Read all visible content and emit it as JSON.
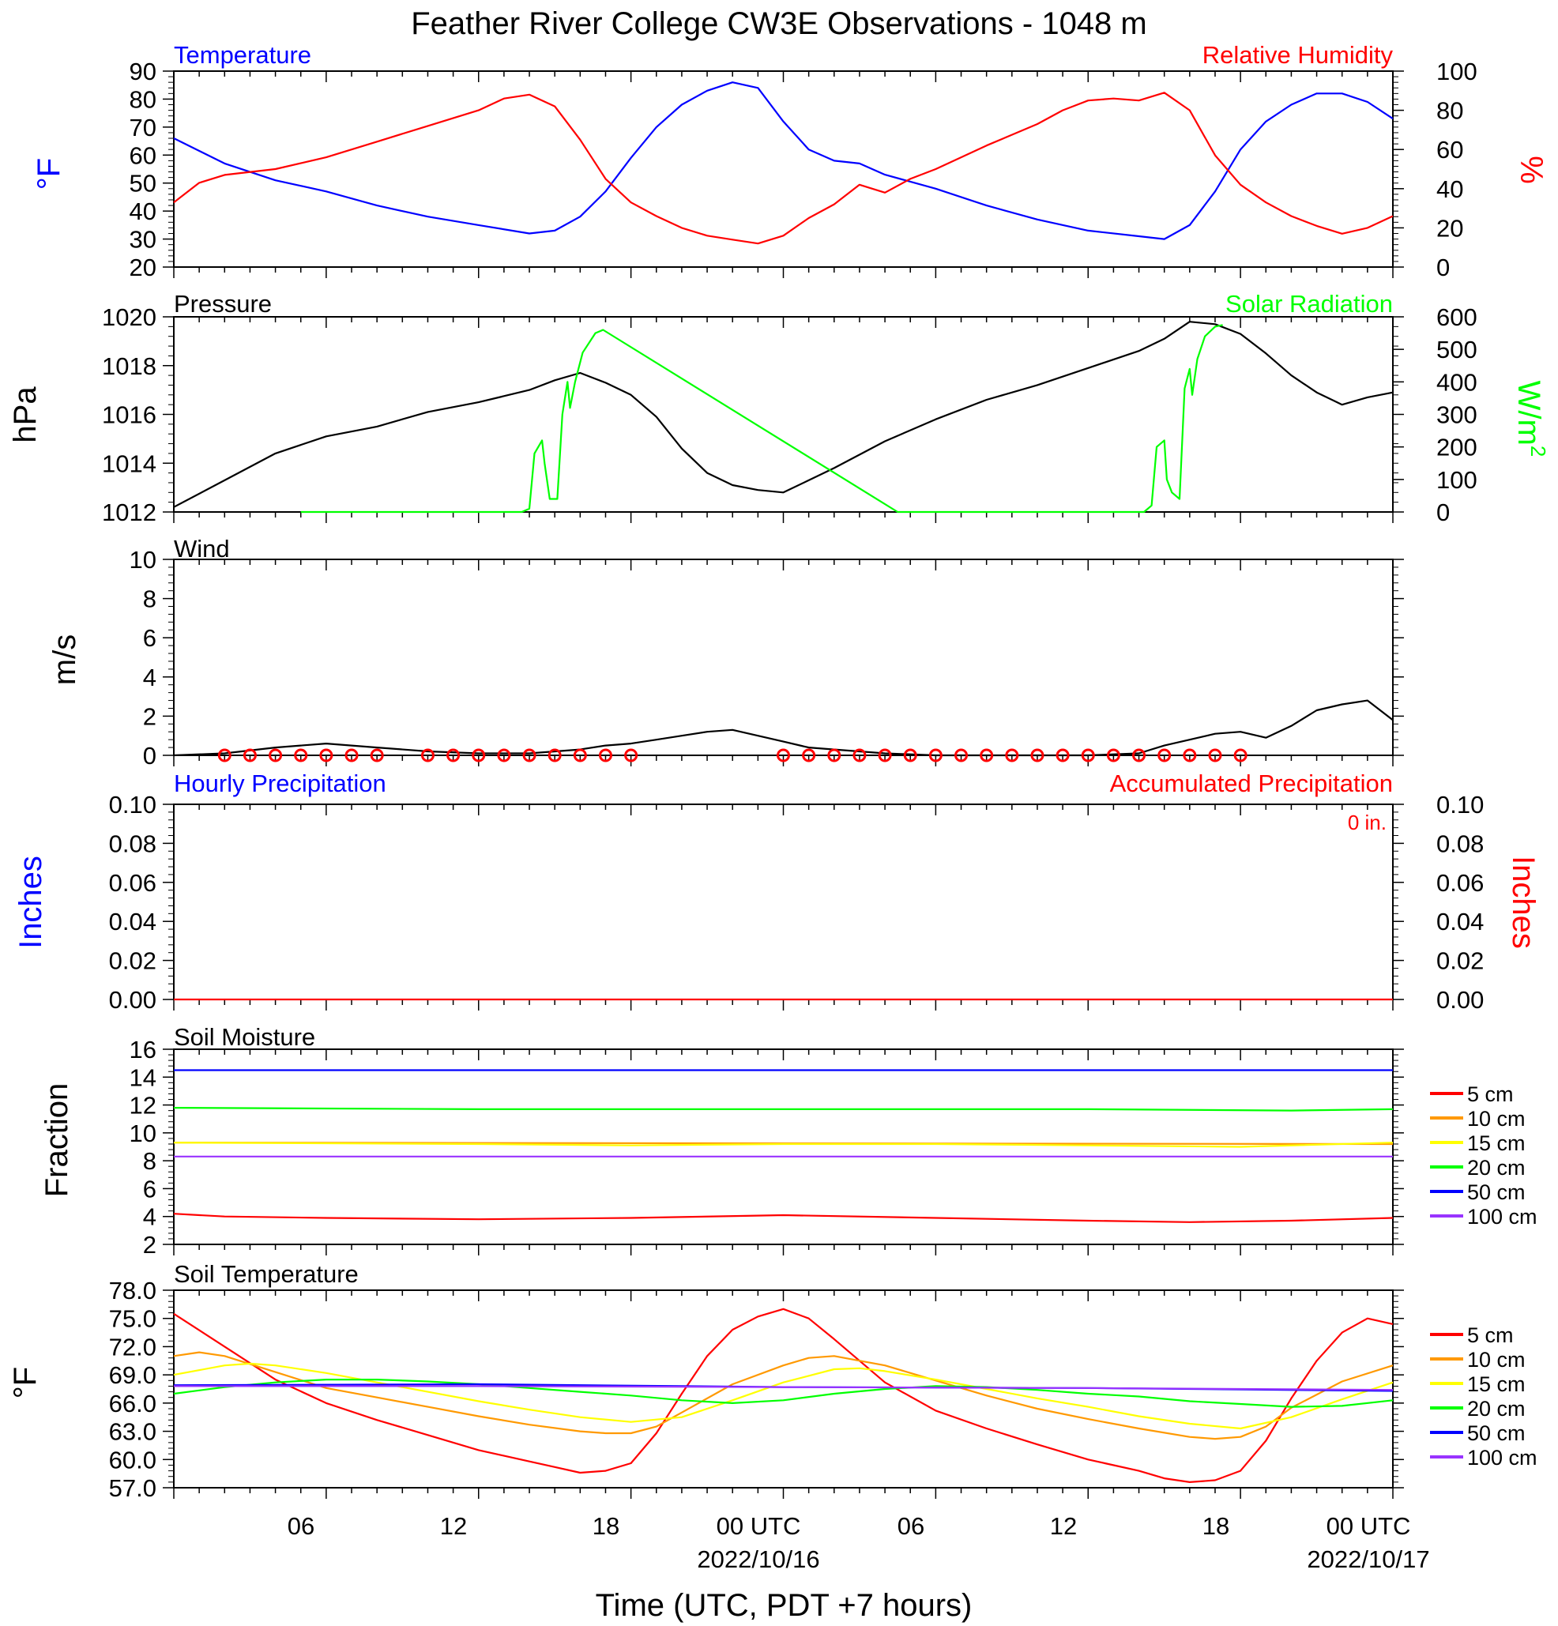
{
  "title": "Feather River College CW3E Observations - 1048 m",
  "x_axis": {
    "title": "Time (UTC, PDT +7 hours)",
    "tick_labels": [
      "06",
      "12",
      "18",
      "00 UTC",
      "06",
      "12",
      "18",
      "00 UTC"
    ],
    "date_labels": [
      "2022/10/16",
      "2022/10/17"
    ]
  },
  "colors": {
    "blue": "#0000ff",
    "red": "#ff0000",
    "green": "#00ff00",
    "orange": "#ff9900",
    "yellow": "#ffff00",
    "purple": "#9933ff",
    "black": "#000000"
  },
  "chart_data": [
    {
      "type": "line",
      "panel": "temperature_rh",
      "title_left": "Temperature",
      "title_right": "Relative Humidity",
      "ylabel_left": "°F",
      "ylabel_right": "%",
      "ylim_left": [
        20,
        90
      ],
      "ylim_right": [
        0,
        100
      ],
      "yticks_left": [
        "20",
        "30",
        "40",
        "50",
        "60",
        "70",
        "80",
        "90"
      ],
      "yticks_right": [
        "0",
        "20",
        "40",
        "60",
        "80",
        "100"
      ],
      "series": [
        {
          "axis": "left",
          "color": "blue",
          "x": [
            0,
            2,
            4,
            6,
            8,
            10,
            12,
            14,
            15,
            16,
            17,
            18,
            19,
            20,
            21,
            22,
            23,
            24,
            25,
            26,
            27,
            28,
            30,
            32,
            34,
            36,
            38,
            39,
            40,
            41,
            42,
            43,
            44,
            45,
            46,
            47,
            48
          ],
          "y": [
            66,
            57,
            51,
            47,
            42,
            38,
            35,
            32,
            33,
            38,
            47,
            59,
            70,
            78,
            83,
            86,
            84,
            72,
            62,
            58,
            57,
            53,
            48,
            42,
            37,
            33,
            31,
            30,
            35,
            47,
            62,
            72,
            78,
            82,
            82,
            79,
            73
          ]
        },
        {
          "axis": "right",
          "color": "red",
          "x": [
            0,
            1,
            2,
            4,
            6,
            8,
            10,
            12,
            13,
            14,
            15,
            16,
            17,
            18,
            19,
            20,
            21,
            22,
            23,
            24,
            25,
            26,
            27,
            28,
            29,
            30,
            32,
            34,
            35,
            36,
            37,
            38,
            39,
            40,
            41,
            42,
            43,
            44,
            45,
            46,
            47,
            48
          ],
          "y": [
            33,
            43,
            47,
            50,
            56,
            64,
            72,
            80,
            86,
            88,
            82,
            65,
            45,
            33,
            26,
            20,
            16,
            14,
            12,
            16,
            25,
            32,
            42,
            38,
            45,
            50,
            62,
            73,
            80,
            85,
            86,
            85,
            89,
            80,
            57,
            42,
            33,
            26,
            21,
            17,
            20,
            26
          ]
        }
      ]
    },
    {
      "type": "line",
      "panel": "pressure_solar",
      "title_left": "Pressure",
      "title_right": "Solar Radiation",
      "ylabel_left": "hPa",
      "ylabel_right": "W/m",
      "ylabel_right_sup": "2",
      "ylim_left": [
        1012,
        1020
      ],
      "ylim_right": [
        0,
        600
      ],
      "yticks_left": [
        "1012",
        "1014",
        "1016",
        "1018",
        "1020"
      ],
      "yticks_right": [
        "0",
        "100",
        "200",
        "300",
        "400",
        "500",
        "600"
      ],
      "series": [
        {
          "axis": "left",
          "color": "black",
          "x": [
            0,
            2,
            4,
            6,
            8,
            10,
            12,
            14,
            15,
            16,
            17,
            18,
            19,
            20,
            21,
            22,
            23,
            24,
            25,
            26,
            28,
            30,
            32,
            34,
            36,
            38,
            39,
            40,
            41,
            42,
            43,
            44,
            45,
            46,
            47,
            48
          ],
          "y": [
            1012.2,
            1013.3,
            1014.4,
            1015.1,
            1015.5,
            1016.1,
            1016.5,
            1017.0,
            1017.4,
            1017.7,
            1017.3,
            1016.8,
            1015.9,
            1014.6,
            1013.6,
            1013.1,
            1012.9,
            1012.8,
            1013.3,
            1013.8,
            1014.9,
            1015.8,
            1016.6,
            1017.2,
            1017.9,
            1018.6,
            1019.1,
            1019.8,
            1019.7,
            1019.3,
            1018.5,
            1017.6,
            1016.9,
            1016.4,
            1016.7,
            1016.9
          ]
        },
        {
          "axis": "right",
          "color": "green",
          "x": [
            5,
            13.7,
            14.0,
            14.2,
            14.5,
            14.6,
            14.8,
            15.1,
            15.3,
            15.5,
            15.6,
            15.8,
            16.1,
            16.6,
            16.9,
            28.5,
            38.2,
            38.5,
            38.7,
            39.0,
            39.1,
            39.3,
            39.6,
            39.8,
            40.0,
            40.1,
            40.3,
            40.6,
            41.0,
            41.3
          ],
          "y": [
            0,
            0,
            10,
            180,
            220,
            150,
            40,
            40,
            300,
            400,
            320,
            400,
            490,
            550,
            560,
            0,
            0,
            20,
            200,
            220,
            100,
            60,
            40,
            380,
            440,
            360,
            470,
            540,
            570,
            575
          ]
        }
      ]
    },
    {
      "type": "line",
      "panel": "wind",
      "title_left": "Wind",
      "ylabel_left": "m/s",
      "ylim_left": [
        0,
        10
      ],
      "yticks_left": [
        "0",
        "2",
        "4",
        "6",
        "8",
        "10"
      ],
      "series": [
        {
          "axis": "left",
          "color": "black",
          "x": [
            0,
            2,
            4,
            6,
            8,
            10,
            12,
            14,
            16,
            17,
            18,
            19,
            20,
            21,
            22,
            23,
            24,
            25,
            26,
            28,
            30,
            32,
            34,
            36,
            38,
            39,
            40,
            41,
            42,
            43,
            44,
            45,
            46,
            47,
            48
          ],
          "y": [
            0,
            0.1,
            0.4,
            0.6,
            0.4,
            0.2,
            0.1,
            0.1,
            0.3,
            0.5,
            0.6,
            0.8,
            1.0,
            1.2,
            1.3,
            1.0,
            0.7,
            0.4,
            0.3,
            0.1,
            0,
            0,
            0,
            0,
            0.1,
            0.5,
            0.8,
            1.1,
            1.2,
            0.9,
            1.5,
            2.3,
            2.6,
            2.8,
            1.8
          ]
        }
      ],
      "circle_markers_hours": [
        2,
        3,
        4,
        5,
        6,
        7,
        8,
        10,
        11,
        12,
        13,
        14,
        15,
        16,
        17,
        18,
        24,
        25,
        26,
        27,
        28,
        29,
        30,
        31,
        32,
        33,
        34,
        35,
        36,
        37,
        38,
        39,
        40,
        41,
        42
      ]
    },
    {
      "type": "line",
      "panel": "precipitation",
      "title_left": "Hourly Precipitation",
      "title_right": "Accumulated Precipitation",
      "annotation": "0 in.",
      "ylabel_left": "Inches",
      "ylabel_right": "Inches",
      "ylim_left": [
        0,
        0.1
      ],
      "ylim_right": [
        0,
        0.1
      ],
      "yticks_left": [
        "0.00",
        "0.02",
        "0.04",
        "0.06",
        "0.08",
        "0.10"
      ],
      "yticks_right": [
        "0.00",
        "0.02",
        "0.04",
        "0.06",
        "0.08",
        "0.10"
      ],
      "series": [
        {
          "axis": "left",
          "color": "red",
          "x": [
            0,
            48
          ],
          "y": [
            0,
            0
          ]
        }
      ]
    },
    {
      "type": "line",
      "panel": "soil_moisture",
      "title_left": "Soil Moisture",
      "ylabel_left": "Fraction",
      "ylim_left": [
        2,
        16
      ],
      "yticks_left": [
        "2",
        "4",
        "6",
        "8",
        "10",
        "12",
        "14",
        "16"
      ],
      "legend": [
        "5 cm",
        "10 cm",
        "15 cm",
        "20 cm",
        "50 cm",
        "100 cm"
      ],
      "legend_colors": [
        "red",
        "orange",
        "yellow",
        "green",
        "blue",
        "purple"
      ],
      "series": [
        {
          "name": "5 cm",
          "color": "red",
          "x": [
            0,
            2,
            6,
            12,
            18,
            24,
            30,
            36,
            40,
            44,
            48
          ],
          "y": [
            4.2,
            4.0,
            3.9,
            3.8,
            3.9,
            4.1,
            3.9,
            3.7,
            3.6,
            3.7,
            3.9
          ]
        },
        {
          "name": "10 cm",
          "color": "orange",
          "x": [
            0,
            48
          ],
          "y": [
            9.3,
            9.2
          ]
        },
        {
          "name": "15 cm",
          "color": "yellow",
          "x": [
            0,
            12,
            18,
            24,
            30,
            36,
            42,
            48
          ],
          "y": [
            9.3,
            9.2,
            9.1,
            9.2,
            9.2,
            9.1,
            9.0,
            9.3
          ]
        },
        {
          "name": "20 cm",
          "color": "green",
          "x": [
            0,
            12,
            24,
            36,
            44,
            48
          ],
          "y": [
            11.8,
            11.7,
            11.7,
            11.7,
            11.6,
            11.7
          ]
        },
        {
          "name": "50 cm",
          "color": "blue",
          "x": [
            0,
            12,
            24,
            36,
            48
          ],
          "y": [
            14.5,
            14.5,
            14.5,
            14.5,
            14.5
          ]
        },
        {
          "name": "100 cm",
          "color": "purple",
          "x": [
            0,
            48
          ],
          "y": [
            8.3,
            8.3
          ]
        }
      ]
    },
    {
      "type": "line",
      "panel": "soil_temperature",
      "title_left": "Soil Temperature",
      "ylabel_left": "°F",
      "ylim_left": [
        57,
        78
      ],
      "yticks_left": [
        "57.0",
        "60.0",
        "63.0",
        "66.0",
        "69.0",
        "72.0",
        "75.0",
        "78.0"
      ],
      "legend": [
        "5 cm",
        "10 cm",
        "15 cm",
        "20 cm",
        "50 cm",
        "100 cm"
      ],
      "legend_colors": [
        "red",
        "orange",
        "yellow",
        "green",
        "blue",
        "purple"
      ],
      "series": [
        {
          "name": "5 cm",
          "color": "red",
          "x": [
            0,
            2,
            4,
            6,
            8,
            10,
            12,
            14,
            15,
            16,
            17,
            18,
            19,
            20,
            21,
            22,
            23,
            24,
            25,
            26,
            28,
            30,
            32,
            34,
            36,
            38,
            39,
            40,
            41,
            42,
            43,
            44,
            45,
            46,
            47,
            48
          ],
          "y": [
            75.5,
            72.0,
            68.5,
            66.0,
            64.2,
            62.6,
            61.0,
            59.8,
            59.2,
            58.6,
            58.8,
            59.6,
            62.8,
            67.0,
            71.0,
            73.8,
            75.2,
            76.0,
            75.0,
            72.8,
            68.2,
            65.2,
            63.3,
            61.6,
            60.0,
            58.8,
            58.0,
            57.6,
            57.8,
            58.8,
            62.0,
            66.5,
            70.5,
            73.5,
            75.0,
            74.4
          ]
        },
        {
          "name": "10 cm",
          "color": "orange",
          "x": [
            0,
            1,
            2,
            4,
            6,
            8,
            10,
            12,
            14,
            16,
            17,
            18,
            19,
            20,
            22,
            24,
            25,
            26,
            28,
            30,
            32,
            34,
            36,
            38,
            40,
            41,
            42,
            43,
            44,
            46,
            48
          ],
          "y": [
            71.0,
            71.4,
            71.0,
            69.3,
            67.6,
            66.6,
            65.6,
            64.6,
            63.7,
            63.0,
            62.8,
            62.8,
            63.5,
            65.0,
            68.0,
            70.0,
            70.8,
            71.0,
            70.0,
            68.4,
            66.8,
            65.4,
            64.3,
            63.3,
            62.4,
            62.2,
            62.4,
            63.5,
            65.5,
            68.3,
            70.0
          ]
        },
        {
          "name": "15 cm",
          "color": "yellow",
          "x": [
            0,
            2,
            3,
            4,
            6,
            8,
            10,
            12,
            14,
            16,
            18,
            20,
            22,
            24,
            26,
            27,
            28,
            30,
            32,
            34,
            36,
            38,
            40,
            42,
            44,
            46,
            48
          ],
          "y": [
            69.0,
            70.0,
            70.2,
            70.0,
            69.2,
            68.2,
            67.2,
            66.2,
            65.3,
            64.5,
            64.0,
            64.5,
            66.3,
            68.2,
            69.6,
            69.7,
            69.4,
            68.5,
            67.5,
            66.5,
            65.6,
            64.6,
            63.8,
            63.3,
            64.5,
            66.4,
            68.2
          ]
        },
        {
          "name": "20 cm",
          "color": "green",
          "x": [
            0,
            2,
            4,
            6,
            8,
            10,
            12,
            14,
            16,
            18,
            20,
            22,
            24,
            26,
            28,
            30,
            32,
            34,
            36,
            38,
            40,
            42,
            44,
            46,
            48
          ],
          "y": [
            67.0,
            67.7,
            68.2,
            68.5,
            68.5,
            68.3,
            68.0,
            67.6,
            67.2,
            66.8,
            66.3,
            66.0,
            66.3,
            67.0,
            67.5,
            67.8,
            67.7,
            67.4,
            67.0,
            66.7,
            66.2,
            65.9,
            65.6,
            65.7,
            66.3
          ]
        },
        {
          "name": "50 cm",
          "color": "blue",
          "x": [
            0,
            12,
            24,
            36,
            48
          ],
          "y": [
            67.9,
            68.0,
            67.7,
            67.6,
            67.3
          ]
        },
        {
          "name": "100 cm",
          "color": "purple",
          "x": [
            0,
            12,
            24,
            36,
            48
          ],
          "y": [
            67.8,
            67.8,
            67.7,
            67.6,
            67.4
          ]
        }
      ]
    }
  ]
}
